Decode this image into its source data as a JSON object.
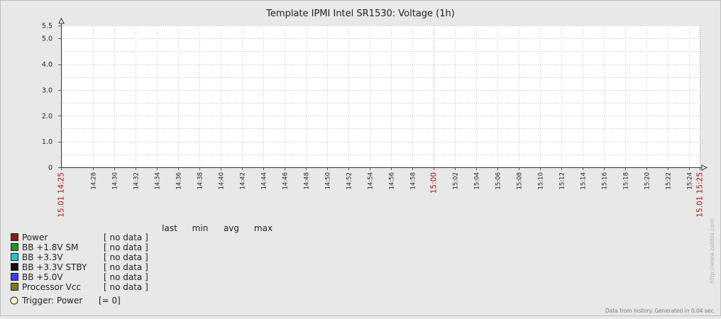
{
  "chart_data": {
    "type": "line",
    "title": "Template IPMI Intel SR1530: Voltage (1h)",
    "xlabel": "",
    "ylabel": "",
    "ylim": [
      0,
      5.5
    ],
    "y_ticks": [
      "0",
      "1.0",
      "2.0",
      "3.0",
      "4.0",
      "5.0",
      "5.5"
    ],
    "x_ticks": [
      {
        "label": "15.01 14:25",
        "highlight": true
      },
      {
        "label": "14:28",
        "highlight": false
      },
      {
        "label": "14:30",
        "highlight": false
      },
      {
        "label": "14:32",
        "highlight": false
      },
      {
        "label": "14:34",
        "highlight": false
      },
      {
        "label": "14:36",
        "highlight": false
      },
      {
        "label": "14:38",
        "highlight": false
      },
      {
        "label": "14:40",
        "highlight": false
      },
      {
        "label": "14:42",
        "highlight": false
      },
      {
        "label": "14:44",
        "highlight": false
      },
      {
        "label": "14:46",
        "highlight": false
      },
      {
        "label": "14:48",
        "highlight": false
      },
      {
        "label": "14:50",
        "highlight": false
      },
      {
        "label": "14:52",
        "highlight": false
      },
      {
        "label": "14:54",
        "highlight": false
      },
      {
        "label": "14:56",
        "highlight": false
      },
      {
        "label": "14:58",
        "highlight": false
      },
      {
        "label": "15:00",
        "highlight": true
      },
      {
        "label": "15:02",
        "highlight": false
      },
      {
        "label": "15:04",
        "highlight": false
      },
      {
        "label": "15:06",
        "highlight": false
      },
      {
        "label": "15:08",
        "highlight": false
      },
      {
        "label": "15:10",
        "highlight": false
      },
      {
        "label": "15:12",
        "highlight": false
      },
      {
        "label": "15:14",
        "highlight": false
      },
      {
        "label": "15:16",
        "highlight": false
      },
      {
        "label": "15:18",
        "highlight": false
      },
      {
        "label": "15:20",
        "highlight": false
      },
      {
        "label": "15:22",
        "highlight": false
      },
      {
        "label": "15:24",
        "highlight": false
      },
      {
        "label": "15.01 15:25",
        "highlight": true
      }
    ],
    "grid": true,
    "legend_columns": [
      "last",
      "min",
      "avg",
      "max"
    ],
    "series": [
      {
        "name": "Power",
        "color": "#8b1a1a",
        "values": [],
        "status": "[ no data ]"
      },
      {
        "name": "BB +1.8V SM",
        "color": "#1a9a1a",
        "values": [],
        "status": "[ no data ]"
      },
      {
        "name": "BB +3.3V",
        "color": "#1ac8c8",
        "values": [],
        "status": "[ no data ]"
      },
      {
        "name": "BB +3.3V STBY",
        "color": "#111111",
        "values": [],
        "status": "[ no data ]"
      },
      {
        "name": "BB +5.0V",
        "color": "#3c3cf0",
        "values": [],
        "status": "[ no data ]"
      },
      {
        "name": "Processor Vcc",
        "color": "#7b7b1a",
        "values": [],
        "status": "[ no data ]"
      }
    ],
    "trigger": {
      "name": "Trigger: Power",
      "value": "[= 0]",
      "color": "#ffffcc"
    },
    "watermark": "http://www.zabbix.com",
    "footer": "Data from history. Generated in 0.04 sec."
  }
}
